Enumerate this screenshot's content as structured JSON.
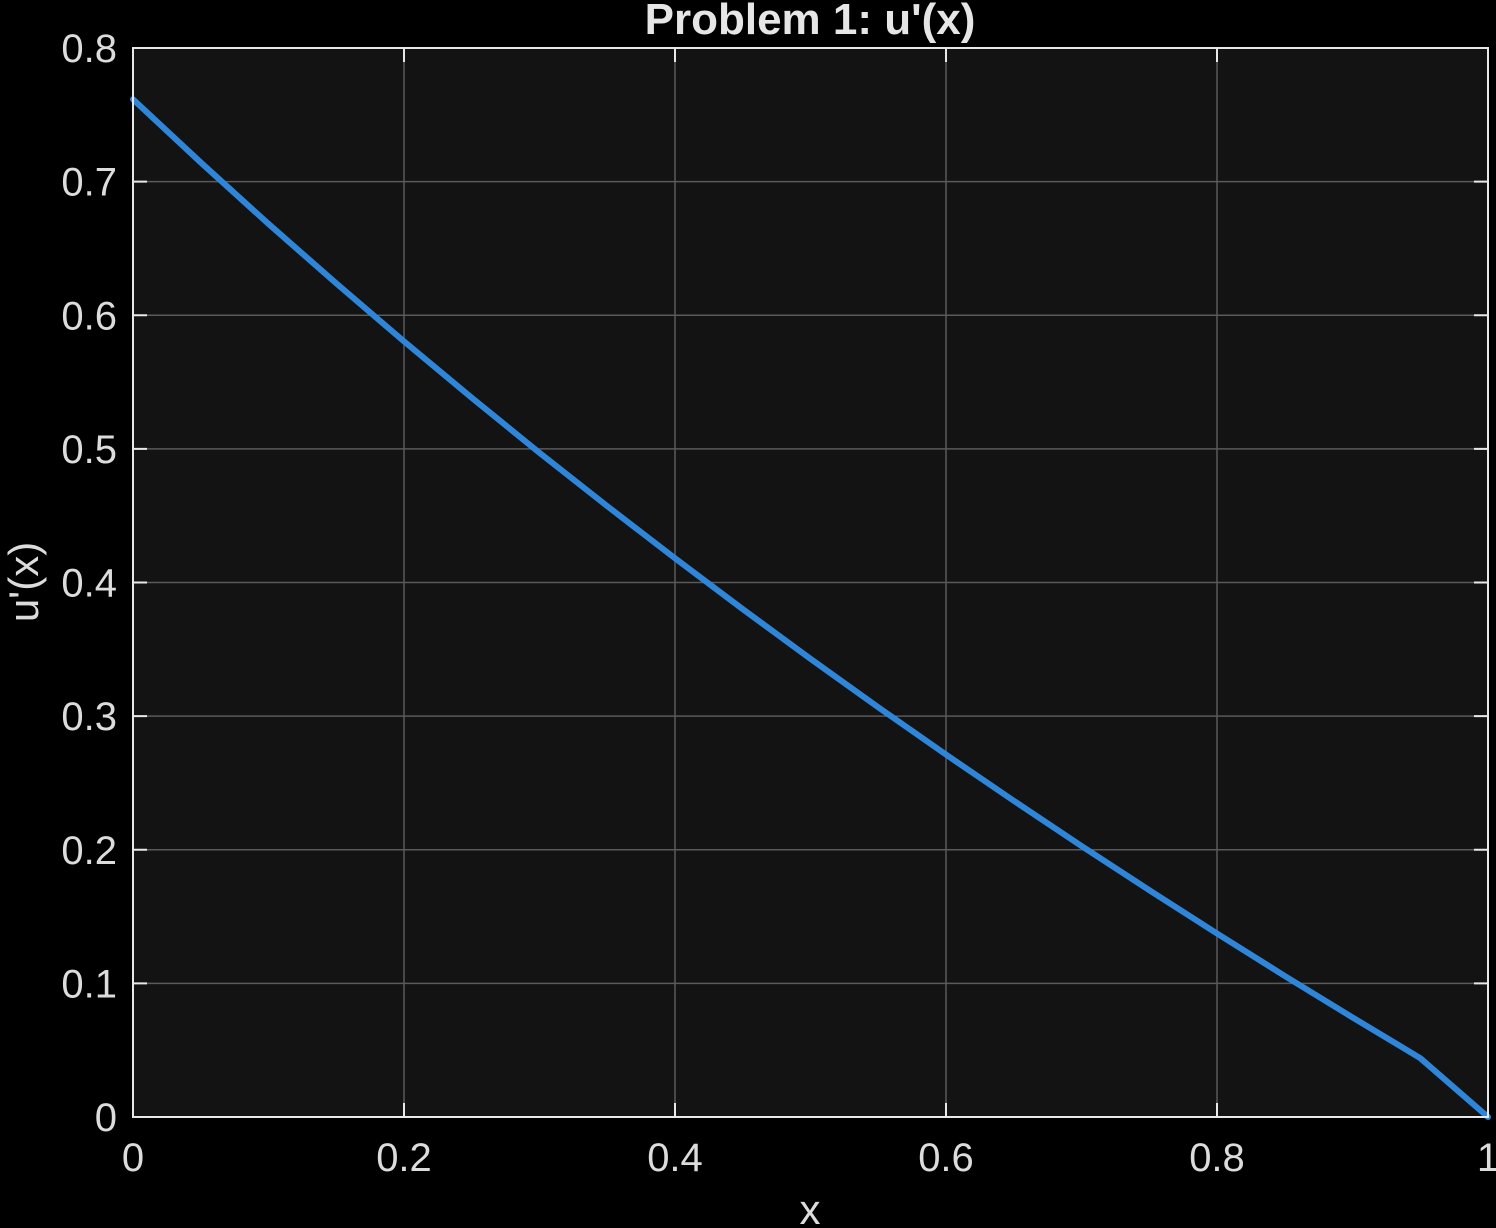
{
  "chart_data": {
    "type": "line",
    "title": "Problem 1: u'(x)",
    "xlabel": "x",
    "ylabel": "u'(x)",
    "xlim": [
      0,
      1
    ],
    "ylim": [
      0,
      0.8
    ],
    "xticks": [
      0,
      0.2,
      0.4,
      0.6,
      0.8,
      1
    ],
    "xtick_labels": [
      "0",
      "0.2",
      "0.4",
      "0.6",
      "0.8",
      "1"
    ],
    "yticks": [
      0,
      0.1,
      0.2,
      0.3,
      0.4,
      0.5,
      0.6,
      0.7,
      0.8
    ],
    "ytick_labels": [
      "0",
      "0.1",
      "0.2",
      "0.3",
      "0.4",
      "0.5",
      "0.6",
      "0.7",
      "0.8"
    ],
    "grid": true,
    "series": [
      {
        "color": "#2f86d8",
        "x": [
          0,
          0.05,
          0.1,
          0.15,
          0.2,
          0.25,
          0.3,
          0.35,
          0.4,
          0.45,
          0.5,
          0.55,
          0.6,
          0.65,
          0.7,
          0.75,
          0.8,
          0.85,
          0.9,
          0.95,
          1
        ],
        "y": [
          0.7616,
          0.7143,
          0.6684,
          0.6238,
          0.5804,
          0.5382,
          0.4971,
          0.4571,
          0.4181,
          0.38,
          0.3429,
          0.3066,
          0.2712,
          0.2366,
          0.2028,
          0.1697,
          0.1373,
          0.1055,
          0.0745,
          0.044,
          0.0
        ]
      }
    ]
  },
  "colors": {
    "background": "#000000",
    "plot_area": "#131313",
    "grid": "#5a5a5a",
    "axis": "#e8e8e8",
    "text": "#dcdcdc"
  }
}
